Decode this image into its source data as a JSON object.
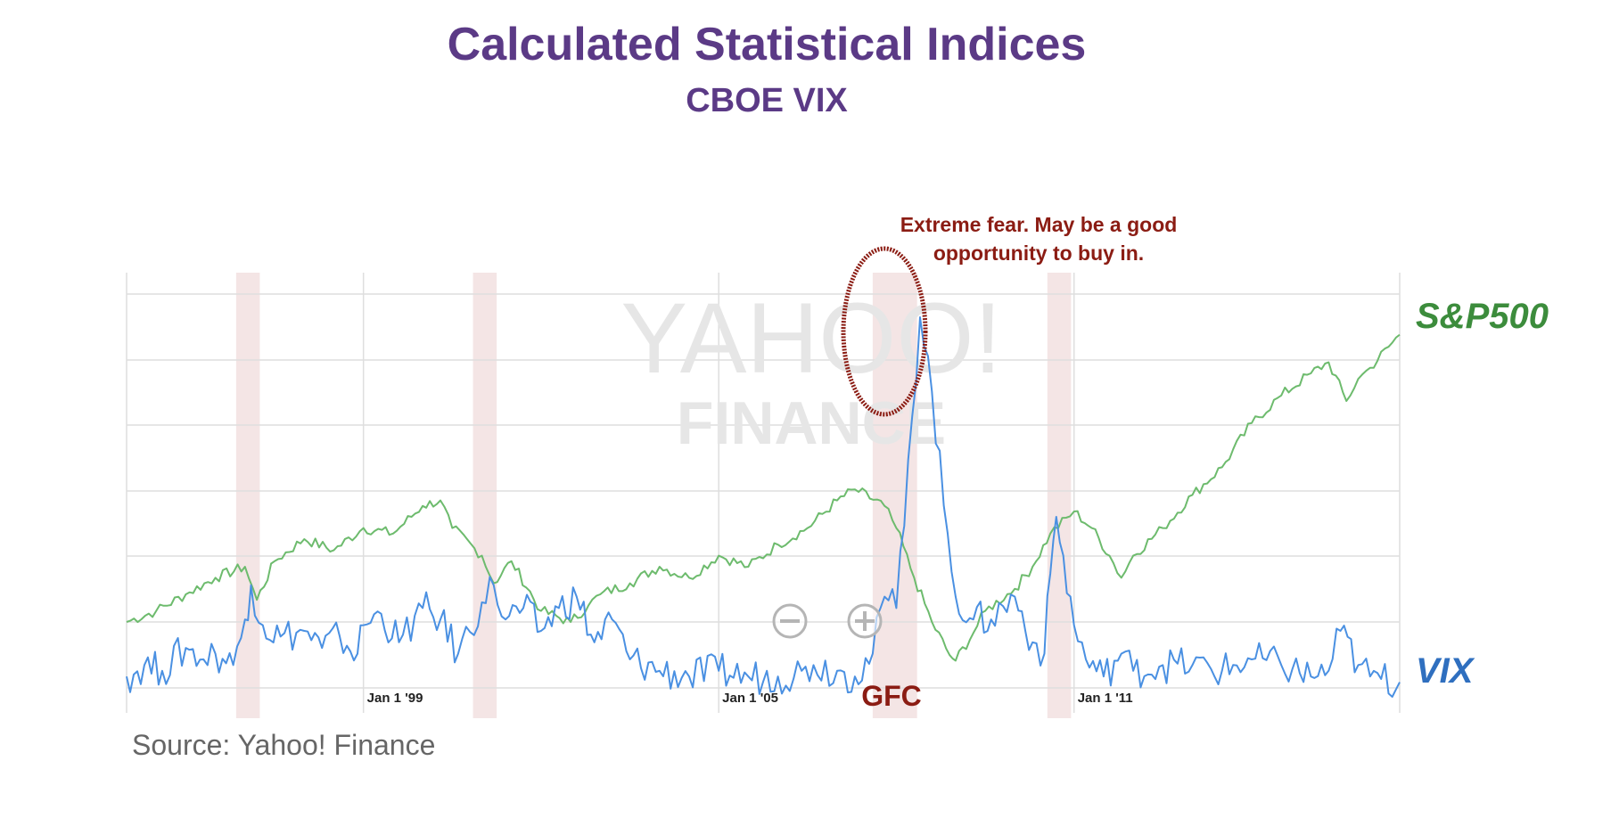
{
  "title": "Calculated Statistical Indices",
  "subtitle": "CBOE VIX",
  "source": "Source: Yahoo! Finance",
  "watermark": {
    "line1": "YAHOO!",
    "line2": "FINANCE"
  },
  "colors": {
    "title": "#5b3a86",
    "sp500": "#3c8c3c",
    "vix": "#2f6fbf",
    "vix_line": "#4a90e2",
    "sp500_line": "#6dbb6d",
    "annotation": "#8b1c13",
    "shade": "#f0dcdc"
  },
  "controls": {
    "zoom_out": "zoom-out-icon",
    "zoom_in": "zoom-in-icon"
  },
  "chart_data": {
    "type": "line",
    "x_range": [
      1995.0,
      2016.5
    ],
    "x_ticks": [
      {
        "label": "Jan 1 '99",
        "value": 1999.0
      },
      {
        "label": "Jan 1 '05",
        "value": 2005.0
      },
      {
        "label": "Jan 1 '11",
        "value": 2011.0
      }
    ],
    "gridlines": {
      "horizontal": true,
      "vertical": true
    },
    "highlight_periods": [
      {
        "start": 1996.85,
        "end": 1997.25
      },
      {
        "start": 2000.85,
        "end": 2001.25
      },
      {
        "start": 2007.6,
        "end": 2008.35
      },
      {
        "start": 2010.55,
        "end": 2010.95
      }
    ],
    "series": [
      {
        "name": "S&P500",
        "color": "#6dbb6d",
        "x": [
          1995.0,
          1995.5,
          1996.0,
          1996.5,
          1997.0,
          1997.2,
          1997.5,
          1998.0,
          1998.5,
          1999.0,
          1999.5,
          2000.0,
          2000.3,
          2000.5,
          2001.0,
          2001.2,
          2001.5,
          2002.0,
          2002.5,
          2002.8,
          2003.0,
          2003.5,
          2004.0,
          2004.5,
          2005.0,
          2005.5,
          2006.0,
          2006.5,
          2007.0,
          2007.3,
          2007.8,
          2008.0,
          2008.3,
          2008.6,
          2008.9,
          2009.0,
          2009.3,
          2009.5,
          2010.0,
          2010.3,
          2010.6,
          2011.0,
          2011.3,
          2011.6,
          2011.8,
          2012.0,
          2012.5,
          2013.0,
          2013.5,
          2014.0,
          2014.5,
          2015.0,
          2015.3,
          2015.6,
          2015.8,
          2016.0,
          2016.5
        ],
        "values": [
          10,
          12,
          15,
          18,
          20,
          14,
          21,
          25,
          23,
          27,
          26,
          31,
          32,
          27,
          22,
          17,
          21,
          12,
          10,
          13,
          15,
          17,
          20,
          18,
          22,
          20,
          24,
          27,
          32,
          34,
          31,
          27,
          18,
          10,
          4,
          3,
          8,
          12,
          16,
          20,
          26,
          30,
          27,
          22,
          18,
          22,
          27,
          33,
          38,
          46,
          51,
          55,
          57,
          50,
          54,
          56,
          62
        ]
      },
      {
        "name": "VIX",
        "color": "#4a90e2",
        "x": [
          1995.0,
          1995.3,
          1995.6,
          1996.0,
          1996.3,
          1996.5,
          1996.8,
          1997.0,
          1997.1,
          1997.3,
          1997.6,
          1998.0,
          1998.3,
          1998.6,
          1998.9,
          1999.0,
          1999.3,
          1999.6,
          2000.0,
          2000.3,
          2000.6,
          2001.0,
          2001.2,
          2001.4,
          2001.7,
          2002.0,
          2002.3,
          2002.6,
          2002.9,
          2003.2,
          2003.5,
          2004.0,
          2004.5,
          2005.0,
          2005.5,
          2006.0,
          2006.4,
          2006.6,
          2007.0,
          2007.3,
          2007.6,
          2007.8,
          2008.0,
          2008.2,
          2008.4,
          2008.6,
          2008.8,
          2009.0,
          2009.3,
          2009.6,
          2010.0,
          2010.3,
          2010.5,
          2010.6,
          2010.7,
          2011.0,
          2011.2,
          2011.5,
          2011.8,
          2012.0,
          2012.5,
          2013.0,
          2013.5,
          2014.0,
          2014.5,
          2015.0,
          2015.3,
          2015.5,
          2015.8,
          2016.0,
          2016.5
        ],
        "values": [
          12,
          14,
          13,
          17,
          15,
          16,
          14,
          22,
          28,
          21,
          19,
          20,
          17,
          19,
          16,
          21,
          23,
          18,
          24,
          22,
          16,
          25,
          28,
          22,
          24,
          20,
          24,
          26,
          18,
          22,
          15,
          13,
          12,
          13,
          12,
          12,
          13,
          14,
          13,
          12,
          16,
          26,
          24,
          50,
          75,
          62,
          42,
          26,
          22,
          22,
          26,
          18,
          16,
          30,
          40,
          21,
          15,
          12,
          16,
          13,
          14,
          14,
          13,
          15,
          14,
          12,
          13,
          20,
          14,
          12,
          11
        ]
      }
    ],
    "annotation": "Extreme fear. May be a good opportunity to buy in.",
    "annotation_lines": [
      "Extreme fear. May be a good",
      "opportunity to buy in."
    ],
    "event_label": "GFC"
  }
}
